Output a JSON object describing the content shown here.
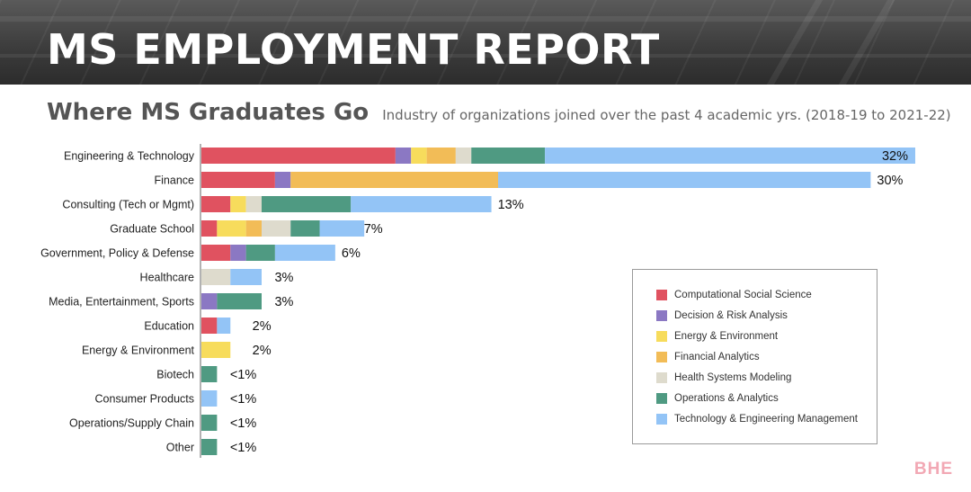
{
  "header": {
    "title": "MS EMPLOYMENT REPORT",
    "chart_title": "Where MS Graduates Go",
    "chart_subtitle": "Industry of organizations joined over the past 4 academic yrs. (2018-19 to 2021-22)"
  },
  "watermark": "BHE",
  "chart_data": {
    "type": "bar",
    "orientation": "horizontal",
    "stacked": true,
    "title": "Where MS Graduates Go",
    "subtitle": "Industry of organizations joined over the past 4 academic yrs. (2018-19 to 2021-22)",
    "xlabel": "",
    "ylabel": "",
    "xlim": [
      0,
      32
    ],
    "grid": false,
    "legend_position": "bottom-right",
    "categories": [
      "Engineering & Technology",
      "Finance",
      "Consulting (Tech or Mgmt)",
      "Graduate School",
      "Government, Policy & Defense",
      "Healthcare",
      "Media, Entertainment, Sports",
      "Education",
      "Energy & Environment",
      "Biotech",
      "Consumer Products",
      "Operations/Supply Chain",
      "Other"
    ],
    "totals": [
      32,
      30,
      13,
      7,
      6,
      3,
      3,
      2,
      2,
      1,
      1,
      1,
      1
    ],
    "total_labels": [
      "32%",
      "30%",
      "13%",
      "7%",
      "6%",
      "3%",
      "3%",
      "2%",
      "2%",
      "<1%",
      "<1%",
      "<1%",
      "<1%"
    ],
    "series": [
      {
        "name": "Computational Social Science",
        "color": "#e05260",
        "values": [
          8.7,
          3.3,
          1.3,
          0.7,
          1.3,
          0,
          0,
          0.7,
          0,
          0,
          0,
          0,
          0
        ]
      },
      {
        "name": "Decision & Risk Analysis",
        "color": "#8b78c3",
        "values": [
          0.7,
          0.7,
          0,
          0,
          0.7,
          0,
          0.7,
          0,
          0,
          0,
          0,
          0,
          0
        ]
      },
      {
        "name": "Energy & Environment",
        "color": "#f7dc5c",
        "values": [
          0.7,
          0,
          0.7,
          1.3,
          0,
          0,
          0,
          0,
          1.3,
          0,
          0,
          0,
          0
        ]
      },
      {
        "name": "Financial Analytics",
        "color": "#f2bc57",
        "values": [
          1.3,
          9.3,
          0,
          0.7,
          0,
          0,
          0,
          0,
          0,
          0,
          0,
          0,
          0
        ]
      },
      {
        "name": "Health Systems Modeling",
        "color": "#dedbcd",
        "values": [
          0.7,
          0,
          0.7,
          1.3,
          0,
          1.3,
          0,
          0,
          0,
          0,
          0,
          0,
          0
        ]
      },
      {
        "name": "Operations & Analytics",
        "color": "#4f9a82",
        "values": [
          3.3,
          0,
          4.0,
          1.3,
          1.3,
          0,
          2.0,
          0,
          0,
          0.7,
          0,
          0.7,
          0.7
        ]
      },
      {
        "name": "Technology & Engineering Management",
        "color": "#93c4f6",
        "values": [
          16.6,
          16.7,
          6.3,
          2.0,
          2.7,
          1.4,
          0,
          0.6,
          0,
          0,
          0.7,
          0,
          0
        ]
      }
    ]
  }
}
